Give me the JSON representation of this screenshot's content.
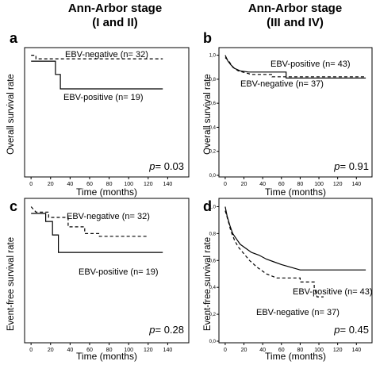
{
  "titles": {
    "left": {
      "line1": "Ann-Arbor stage",
      "line2": "(I and II)"
    },
    "right": {
      "line1": "Ann-Arbor stage",
      "line2": "(III and IV)"
    }
  },
  "chart_data": [
    {
      "panel": "a",
      "type": "line",
      "ylabel": "Overall survival rate",
      "xlabel": "Time (months)",
      "xlim": [
        -5,
        160
      ],
      "ylim": [
        0,
        1.05
      ],
      "xticks": [
        0,
        20,
        40,
        60,
        80,
        100,
        120,
        140
      ],
      "yticks": [],
      "pvalue": "p= 0.03",
      "series": [
        {
          "name": "EBV-negative (n= 32)",
          "style": "dashed",
          "points": [
            [
              0,
              1
            ],
            [
              5,
              1
            ],
            [
              5,
              0.97
            ],
            [
              135,
              0.97
            ]
          ]
        },
        {
          "name": "EBV-positive (n= 19)",
          "style": "solid",
          "points": [
            [
              0,
              0.95
            ],
            [
              25,
              0.95
            ],
            [
              25,
              0.84
            ],
            [
              30,
              0.84
            ],
            [
              30,
              0.72
            ],
            [
              135,
              0.72
            ]
          ]
        }
      ],
      "legend_positions": [
        "top-right",
        "below-curves"
      ]
    },
    {
      "panel": "b",
      "type": "line",
      "ylabel": "Overall survival rate",
      "xlabel": "Time (months)",
      "xlim": [
        -5,
        155
      ],
      "ylim": [
        0,
        1.05
      ],
      "xticks": [
        0,
        20,
        40,
        60,
        80,
        100,
        120,
        140
      ],
      "yticks": [
        "0,0",
        "0,2",
        "0,4",
        "0,6",
        "0,8",
        "1,0"
      ],
      "pvalue": "p= 0.91",
      "series": [
        {
          "name": "EBV-positive (n= 43)",
          "style": "solid",
          "points": [
            [
              0,
              1
            ],
            [
              3,
              0.95
            ],
            [
              6,
              0.92
            ],
            [
              10,
              0.89
            ],
            [
              16,
              0.87
            ],
            [
              25,
              0.86
            ],
            [
              65,
              0.86
            ],
            [
              65,
              0.81
            ],
            [
              150,
              0.81
            ]
          ]
        },
        {
          "name": "EBV-negative (n= 37)",
          "style": "dashed",
          "points": [
            [
              0,
              0.98
            ],
            [
              4,
              0.95
            ],
            [
              8,
              0.9
            ],
            [
              14,
              0.87
            ],
            [
              28,
              0.84
            ],
            [
              50,
              0.84
            ],
            [
              50,
              0.82
            ],
            [
              150,
              0.82
            ]
          ]
        }
      ],
      "legend_positions": [
        "top-right",
        "below-curves"
      ]
    },
    {
      "panel": "c",
      "type": "line",
      "ylabel": "Event-free survival rate",
      "xlabel": "Time (months)",
      "xlim": [
        -5,
        160
      ],
      "ylim": [
        0,
        1.05
      ],
      "xticks": [
        0,
        20,
        40,
        60,
        80,
        100,
        120,
        140
      ],
      "yticks": [],
      "pvalue": "p= 0.28",
      "series": [
        {
          "name": "EBV-negative (n= 32)",
          "style": "dashed",
          "points": [
            [
              0,
              1
            ],
            [
              5,
              0.96
            ],
            [
              18,
              0.96
            ],
            [
              18,
              0.92
            ],
            [
              38,
              0.92
            ],
            [
              38,
              0.85
            ],
            [
              55,
              0.85
            ],
            [
              55,
              0.8
            ],
            [
              70,
              0.8
            ],
            [
              70,
              0.78
            ],
            [
              120,
              0.78
            ]
          ]
        },
        {
          "name": "EBV-positive (n= 19)",
          "style": "solid",
          "points": [
            [
              0,
              0.95
            ],
            [
              15,
              0.95
            ],
            [
              15,
              0.89
            ],
            [
              22,
              0.89
            ],
            [
              22,
              0.79
            ],
            [
              28,
              0.79
            ],
            [
              28,
              0.66
            ],
            [
              135,
              0.66
            ]
          ]
        }
      ],
      "legend_positions": [
        "top-right",
        "below-curves"
      ]
    },
    {
      "panel": "d",
      "type": "line",
      "ylabel": "Event-free survival rate",
      "xlabel": "Time (months)",
      "xlim": [
        -5,
        155
      ],
      "ylim": [
        0,
        1.05
      ],
      "xticks": [
        0,
        20,
        40,
        60,
        80,
        100,
        120,
        140
      ],
      "yticks": [
        "0,0",
        "0,2",
        "0,4",
        "0,6",
        "0,8",
        "1,0"
      ],
      "pvalue": "p= 0.45",
      "series": [
        {
          "name": "EBV-positive (n= 43)",
          "style": "solid",
          "points": [
            [
              0,
              1
            ],
            [
              2,
              0.93
            ],
            [
              5,
              0.86
            ],
            [
              8,
              0.8
            ],
            [
              12,
              0.76
            ],
            [
              16,
              0.72
            ],
            [
              22,
              0.69
            ],
            [
              28,
              0.66
            ],
            [
              36,
              0.64
            ],
            [
              44,
              0.61
            ],
            [
              52,
              0.59
            ],
            [
              60,
              0.57
            ],
            [
              70,
              0.55
            ],
            [
              80,
              0.53
            ],
            [
              150,
              0.53
            ]
          ]
        },
        {
          "name": "EBV-negative (n= 37)",
          "style": "dashed",
          "points": [
            [
              0,
              0.97
            ],
            [
              3,
              0.9
            ],
            [
              6,
              0.82
            ],
            [
              10,
              0.75
            ],
            [
              14,
              0.7
            ],
            [
              20,
              0.65
            ],
            [
              26,
              0.6
            ],
            [
              34,
              0.55
            ],
            [
              44,
              0.5
            ],
            [
              55,
              0.47
            ],
            [
              80,
              0.47
            ],
            [
              80,
              0.44
            ],
            [
              95,
              0.44
            ],
            [
              95,
              0.4
            ],
            [
              98,
              0.33
            ],
            [
              105,
              0.33
            ]
          ]
        }
      ],
      "legend_positions": [
        "top-right",
        "below-curves"
      ]
    }
  ]
}
